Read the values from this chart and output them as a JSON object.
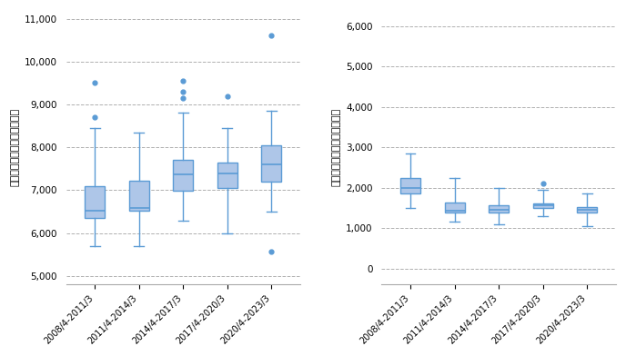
{
  "categories": [
    "2008/4-2011/3",
    "2011/4-2014/3",
    "2014/4-2017/3",
    "2017/4-2020/3",
    "2020/4-2023/3"
  ],
  "left_ylabel": "株式会社の設立（月あたり）",
  "right_ylabel": "株式会社の解散（月あたり）",
  "left_ylim": [
    4800,
    11200
  ],
  "right_ylim": [
    -400,
    6400
  ],
  "left_yticks": [
    5000,
    6000,
    7000,
    8000,
    9000,
    10000,
    11000
  ],
  "right_yticks": [
    0,
    1000,
    2000,
    3000,
    4000,
    5000,
    6000
  ],
  "box_color": "#5b9bd5",
  "box_face_color": "#aec6e8",
  "flier_color": "#5b9bd5",
  "bg_color": "#ffffff",
  "grid_color": "#b0b0b0",
  "left_boxes": [
    {
      "q1": 6350,
      "median": 6530,
      "q3": 7100,
      "whislo": 5700,
      "whishi": 8450,
      "fliers": [
        8700,
        9500
      ]
    },
    {
      "q1": 6530,
      "median": 6580,
      "q3": 7220,
      "whislo": 5700,
      "whishi": 8350,
      "fliers": []
    },
    {
      "q1": 6980,
      "median": 7380,
      "q3": 7700,
      "whislo": 6300,
      "whishi": 8800,
      "fliers": [
        9150,
        9300,
        9550
      ]
    },
    {
      "q1": 7050,
      "median": 7400,
      "q3": 7650,
      "whislo": 6000,
      "whishi": 8450,
      "fliers": [
        9200
      ]
    },
    {
      "q1": 7200,
      "median": 7600,
      "q3": 8050,
      "whislo": 6500,
      "whishi": 8850,
      "fliers": [
        5560,
        10600
      ]
    }
  ],
  "right_boxes": [
    {
      "q1": 1850,
      "median": 2000,
      "q3": 2250,
      "whislo": 1500,
      "whishi": 2850,
      "fliers": []
    },
    {
      "q1": 1380,
      "median": 1430,
      "q3": 1640,
      "whislo": 1150,
      "whishi": 2250,
      "fliers": []
    },
    {
      "q1": 1390,
      "median": 1460,
      "q3": 1570,
      "whislo": 1100,
      "whishi": 2000,
      "fliers": []
    },
    {
      "q1": 1490,
      "median": 1560,
      "q3": 1600,
      "whislo": 1300,
      "whishi": 1950,
      "fliers": [
        2100
      ]
    },
    {
      "q1": 1390,
      "median": 1460,
      "q3": 1530,
      "whislo": 1050,
      "whishi": 1850,
      "fliers": []
    }
  ]
}
